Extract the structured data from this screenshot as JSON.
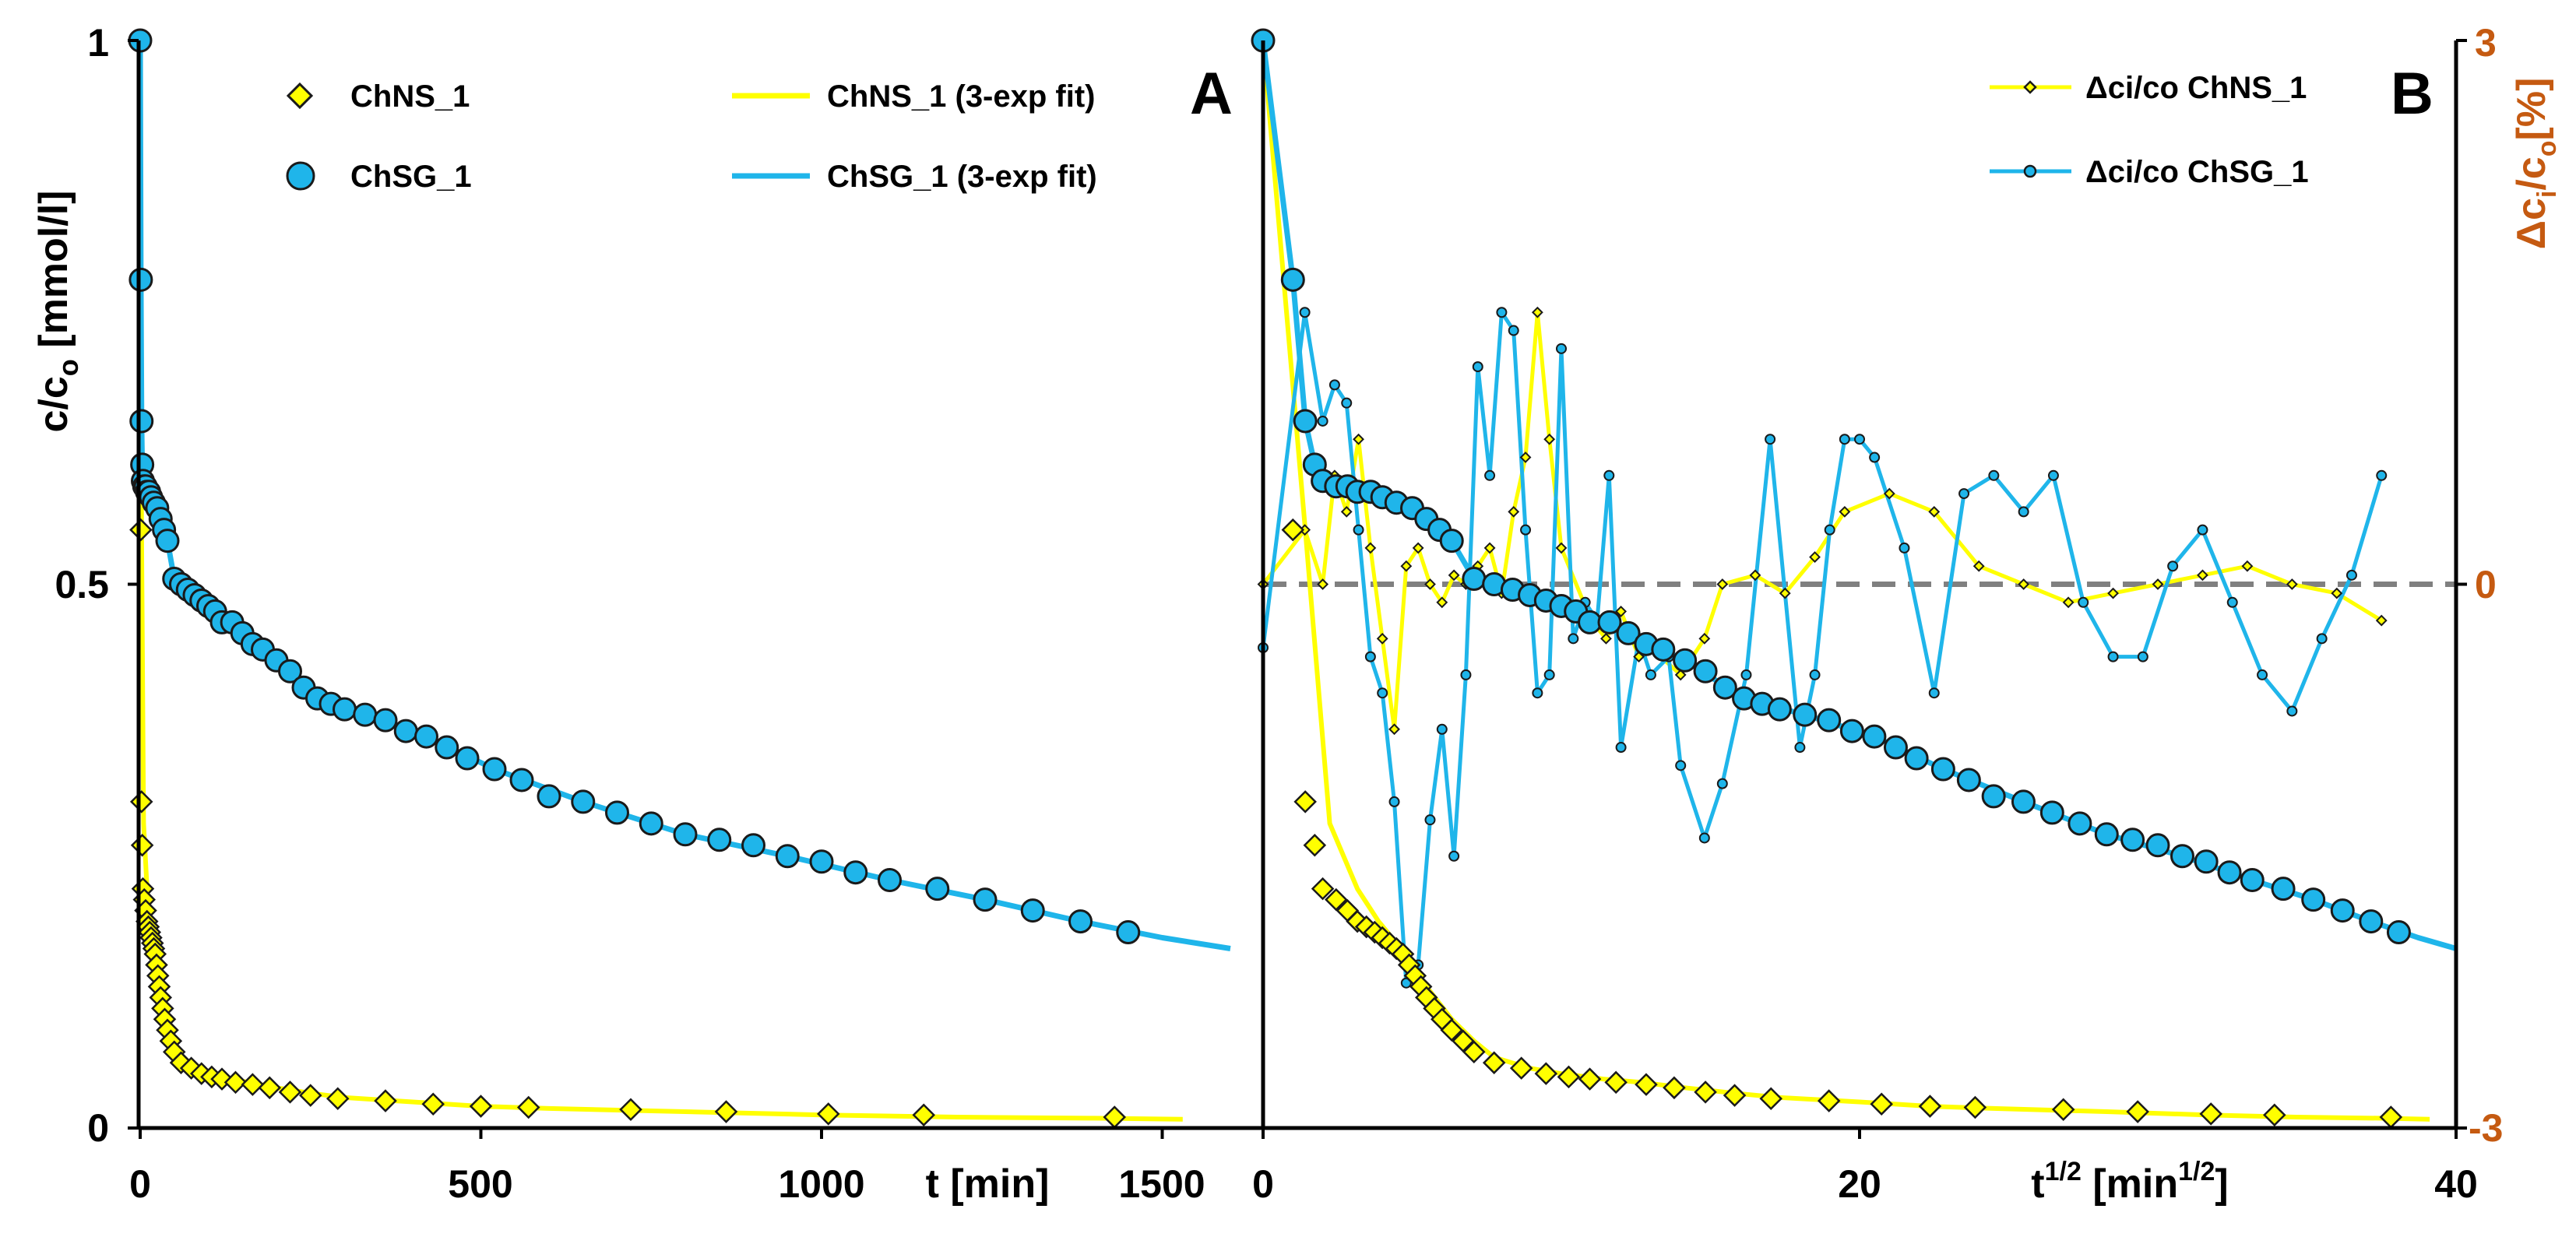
{
  "colors": {
    "chns": "#ffff00",
    "chsg": "#1fb5ea",
    "marker_edge": "#1a1a1a",
    "zero_line": "#808080",
    "right_axis": "#c55a11"
  },
  "chart_data": [
    {
      "type": "scatter",
      "panel": "A",
      "panel_label": "A",
      "x_unit": "t [min]",
      "ylabel_main": "c/c",
      "ylabel_sub": "o",
      "ylabel_tail": " [mmol/l]",
      "xlim": [
        0,
        1600
      ],
      "ylim": [
        0,
        1
      ],
      "x_ticks": [
        "0",
        "500",
        "1000",
        "1500"
      ],
      "x_tick_values": [
        0,
        500,
        1000,
        1500
      ],
      "y_ticks": [
        "0",
        "0.5",
        "1"
      ],
      "y_tick_values": [
        0,
        0.5,
        1
      ],
      "legend": {
        "chns_marker": "ChNS_1",
        "chsg_marker": "ChSG_1",
        "chns_fit": "ChNS_1 (3-exp fit)",
        "chsg_fit": "ChSG_1  (3-exp fit)"
      },
      "series": [
        {
          "name": "ChNS_1",
          "marker": "diamond",
          "x": [
            0,
            1,
            2,
            3,
            4,
            6,
            8,
            10,
            12,
            14,
            16,
            18,
            20,
            22,
            24,
            26,
            28,
            30,
            33,
            36,
            40,
            45,
            50,
            60,
            75,
            90,
            105,
            120,
            140,
            165,
            190,
            220,
            250,
            290,
            360,
            430,
            500,
            570,
            720,
            860,
            1010,
            1150,
            1430
          ],
          "y": [
            1,
            0.55,
            0.3,
            0.26,
            0.22,
            0.21,
            0.2,
            0.19,
            0.185,
            0.18,
            0.175,
            0.17,
            0.165,
            0.16,
            0.15,
            0.14,
            0.13,
            0.12,
            0.11,
            0.1,
            0.09,
            0.08,
            0.07,
            0.06,
            0.055,
            0.05,
            0.047,
            0.045,
            0.042,
            0.04,
            0.037,
            0.033,
            0.03,
            0.027,
            0.025,
            0.022,
            0.02,
            0.019,
            0.017,
            0.015,
            0.013,
            0.012,
            0.01
          ]
        },
        {
          "name": "ChSG_1",
          "marker": "circle",
          "x": [
            0,
            1,
            2,
            3,
            4,
            6,
            8,
            10,
            13,
            16,
            20,
            25,
            30,
            35,
            40,
            50,
            60,
            70,
            80,
            90,
            100,
            110,
            120,
            135,
            150,
            165,
            180,
            200,
            220,
            240,
            260,
            280,
            300,
            330,
            360,
            390,
            420,
            450,
            480,
            520,
            560,
            600,
            650,
            700,
            750,
            800,
            850,
            900,
            950,
            1000,
            1050,
            1100,
            1170,
            1240,
            1310,
            1380,
            1450
          ],
          "y": [
            1,
            0.78,
            0.65,
            0.61,
            0.595,
            0.59,
            0.59,
            0.585,
            0.585,
            0.58,
            0.575,
            0.57,
            0.56,
            0.55,
            0.54,
            0.505,
            0.5,
            0.495,
            0.49,
            0.485,
            0.48,
            0.475,
            0.465,
            0.465,
            0.455,
            0.445,
            0.44,
            0.43,
            0.42,
            0.405,
            0.395,
            0.39,
            0.385,
            0.38,
            0.375,
            0.365,
            0.36,
            0.35,
            0.34,
            0.33,
            0.32,
            0.305,
            0.3,
            0.29,
            0.28,
            0.27,
            0.265,
            0.26,
            0.25,
            0.245,
            0.235,
            0.228,
            0.22,
            0.21,
            0.2,
            0.19,
            0.18
          ]
        },
        {
          "name": "ChNS_1 (3-exp fit)",
          "line": true,
          "x": [
            0,
            2,
            5,
            10,
            15,
            20,
            25,
            30,
            40,
            50,
            60,
            80,
            100,
            130,
            160,
            200,
            250,
            300,
            400,
            500,
            600,
            800,
            1000,
            1200,
            1400,
            1530
          ],
          "y": [
            1,
            0.55,
            0.28,
            0.22,
            0.19,
            0.17,
            0.15,
            0.13,
            0.1,
            0.08,
            0.065,
            0.055,
            0.05,
            0.045,
            0.042,
            0.037,
            0.032,
            0.028,
            0.024,
            0.02,
            0.018,
            0.015,
            0.012,
            0.01,
            0.009,
            0.008
          ]
        },
        {
          "name": "ChSG_1  (3-exp fit)",
          "line": true,
          "x": [
            0,
            1,
            2,
            3,
            5,
            8,
            15,
            25,
            40,
            50,
            70,
            100,
            150,
            200,
            260,
            330,
            420,
            520,
            650,
            800,
            950,
            1100,
            1240,
            1380,
            1500,
            1600
          ],
          "y": [
            1,
            0.78,
            0.65,
            0.61,
            0.59,
            0.588,
            0.582,
            0.57,
            0.54,
            0.505,
            0.495,
            0.48,
            0.455,
            0.43,
            0.395,
            0.38,
            0.36,
            0.33,
            0.3,
            0.27,
            0.25,
            0.228,
            0.21,
            0.19,
            0.175,
            0.165
          ]
        }
      ]
    },
    {
      "type": "line",
      "panel": "B",
      "panel_label": "B",
      "x_unit": "t",
      "x_unit_sup": "1/2",
      "x_unit_mid": " [min",
      "x_unit_tail": "]",
      "xlim": [
        0,
        40
      ],
      "ylim": [
        0,
        1
      ],
      "x_ticks": [
        "0",
        "20",
        "40"
      ],
      "x_tick_values": [
        0,
        20,
        40
      ],
      "right_axis": {
        "label_main": "Δc",
        "label_sub1": "i",
        "label_mid": "/c",
        "label_sub2": "o",
        "label_tail": "[%]",
        "ylim": [
          -3,
          3
        ],
        "ticks": [
          "-3",
          "0",
          "3"
        ],
        "tick_values": [
          -3,
          0,
          3
        ],
        "zero_line": 0
      },
      "legend": {
        "chns_residual": "Δci/co ChNS_1",
        "chsg_residual": "Δci/co ChSG_1"
      },
      "residuals": [
        {
          "name": "Δci/co ChNS_1",
          "x": [
            0,
            1.4,
            2.0,
            2.4,
            2.8,
            3.2,
            3.6,
            4.0,
            4.4,
            4.8,
            5.2,
            5.6,
            6.0,
            6.4,
            6.8,
            7.2,
            7.6,
            8.0,
            8.4,
            8.8,
            9.2,
            9.6,
            10.0,
            11.0,
            11.5,
            12.0,
            12.6,
            13.0,
            14.0,
            14.8,
            15.4,
            16.5,
            17.5,
            18.5,
            19.5,
            21,
            22.5,
            24,
            25.5,
            27,
            28.5,
            30,
            31.5,
            33,
            34.5,
            36,
            37.5
          ],
          "y": [
            0,
            0.3,
            0,
            0.6,
            0.4,
            0.8,
            0.2,
            -0.3,
            -0.8,
            0.1,
            0.2,
            0,
            -0.1,
            0.05,
            0,
            0.1,
            0.2,
            -0.05,
            0.4,
            0.7,
            1.5,
            0.8,
            0.2,
            -0.2,
            -0.3,
            -0.15,
            -0.4,
            -0.35,
            -0.5,
            -0.3,
            0,
            0.05,
            -0.05,
            0.15,
            0.4,
            0.5,
            0.4,
            0.1,
            0,
            -0.1,
            -0.05,
            0,
            0.05,
            0.1,
            0,
            -0.05,
            -0.2
          ]
        },
        {
          "name": "Δci/co ChSG_1",
          "x": [
            0,
            1.4,
            2.0,
            2.4,
            2.8,
            3.2,
            3.6,
            4.0,
            4.4,
            4.8,
            5.2,
            5.6,
            6.0,
            6.4,
            6.8,
            7.2,
            7.6,
            8.0,
            8.4,
            8.8,
            9.2,
            9.6,
            10.0,
            10.4,
            10.8,
            11.2,
            11.6,
            12.0,
            12.6,
            13.0,
            13.6,
            14.0,
            14.8,
            15.4,
            16.2,
            17.0,
            18.0,
            18.5,
            19.0,
            19.5,
            20.0,
            20.5,
            21.5,
            22.5,
            23.5,
            24.5,
            25.5,
            26.5,
            27.5,
            28.5,
            29.5,
            30.5,
            31.5,
            32.5,
            33.5,
            34.5,
            35.5,
            36.5,
            37.5
          ],
          "y": [
            -0.35,
            1.5,
            0.9,
            1.1,
            1.0,
            0.3,
            -0.4,
            -0.6,
            -1.2,
            -2.2,
            -2.1,
            -1.3,
            -0.8,
            -1.5,
            -0.5,
            1.2,
            0.6,
            1.5,
            1.4,
            0.3,
            -0.6,
            -0.5,
            1.3,
            -0.3,
            -0.1,
            -0.2,
            0.6,
            -0.9,
            -0.3,
            -0.5,
            -0.4,
            -1.0,
            -1.4,
            -1.1,
            -0.5,
            0.8,
            -0.9,
            -0.5,
            0.3,
            0.8,
            0.8,
            0.7,
            0.2,
            -0.6,
            0.5,
            0.6,
            0.4,
            0.6,
            -0.1,
            -0.4,
            -0.4,
            0.1,
            0.3,
            -0.1,
            -0.5,
            -0.7,
            -0.3,
            0.05,
            0.6
          ]
        }
      ]
    }
  ]
}
